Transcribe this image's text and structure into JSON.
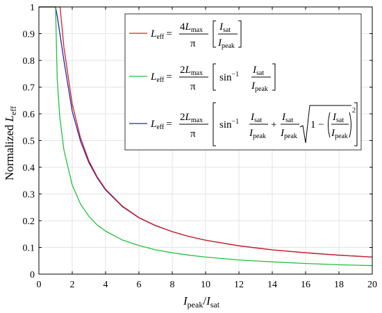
{
  "chart_data": {
    "type": "line",
    "title": "",
    "xlabel": "I_peak/I_sat",
    "ylabel": "Normalized L_eff",
    "xlim": [
      0,
      20
    ],
    "ylim": [
      0,
      1
    ],
    "xticks": [
      0,
      2,
      4,
      6,
      8,
      10,
      12,
      14,
      16,
      18,
      20
    ],
    "yticks": [
      0,
      0.1,
      0.2,
      0.3,
      0.4,
      0.5,
      0.6,
      0.7,
      0.8,
      0.9,
      1
    ],
    "grid": true,
    "legend_position": "top-right",
    "series": [
      {
        "name": "L_eff = (4 L_max / π) [ I_sat / I_peak ]",
        "color": "#d62020",
        "x": [
          1.27,
          1.5,
          2,
          2.5,
          3,
          3.5,
          4,
          5,
          6,
          7,
          8,
          9,
          10,
          12,
          14,
          16,
          18,
          20
        ],
        "y": [
          1.0,
          0.849,
          0.637,
          0.509,
          0.424,
          0.364,
          0.318,
          0.255,
          0.212,
          0.182,
          0.159,
          0.141,
          0.127,
          0.106,
          0.091,
          0.08,
          0.071,
          0.064
        ]
      },
      {
        "name": "L_eff = (2 L_max / π) [ sin⁻¹ (I_sat / I_peak) ]",
        "color": "#22c03c",
        "x": [
          1.0,
          1.1,
          1.25,
          1.5,
          2,
          2.5,
          3,
          3.5,
          4,
          5,
          6,
          7,
          8,
          9,
          10,
          12,
          14,
          16,
          18,
          20
        ],
        "y": [
          1.0,
          0.728,
          0.59,
          0.465,
          0.333,
          0.262,
          0.216,
          0.184,
          0.161,
          0.128,
          0.107,
          0.091,
          0.08,
          0.071,
          0.064,
          0.053,
          0.046,
          0.04,
          0.035,
          0.032
        ]
      },
      {
        "name": "L_eff = (2 L_max / π) [ sin⁻¹ (I_sat / I_peak) + (I_sat / I_peak) √(1 − (I_sat / I_peak)²) ]",
        "color": "#2424b0",
        "x": [
          1.0,
          1.1,
          1.25,
          1.5,
          2,
          2.5,
          3,
          3.5,
          4,
          5,
          6,
          7,
          8,
          9,
          10,
          12,
          14,
          16,
          18,
          20
        ],
        "y": [
          1.0,
          0.966,
          0.904,
          0.8,
          0.609,
          0.497,
          0.417,
          0.36,
          0.315,
          0.253,
          0.211,
          0.181,
          0.159,
          0.141,
          0.127,
          0.106,
          0.091,
          0.08,
          0.071,
          0.064
        ]
      }
    ]
  },
  "labels": {
    "ylabel_main": "Normalized ",
    "ylabel_var": "L",
    "ylabel_sub": "eff",
    "xlabel_var1": "I",
    "xlabel_sub1": "peak",
    "xlabel_slash": "/",
    "xlabel_var2": "I",
    "xlabel_sub2": "sat"
  },
  "legend": {
    "lhs_var": "L",
    "lhs_sub": "eff",
    "equals": "=",
    "coef1": "4",
    "coef2": "2",
    "lmax_var": "L",
    "lmax_sub": "max",
    "pi": "π",
    "i_var": "I",
    "sat_sub": "sat",
    "peak_sub": "peak",
    "arcsin": "sin",
    "inverse": "−1",
    "plus": "+",
    "one_minus": "1 −",
    "square": "2"
  }
}
